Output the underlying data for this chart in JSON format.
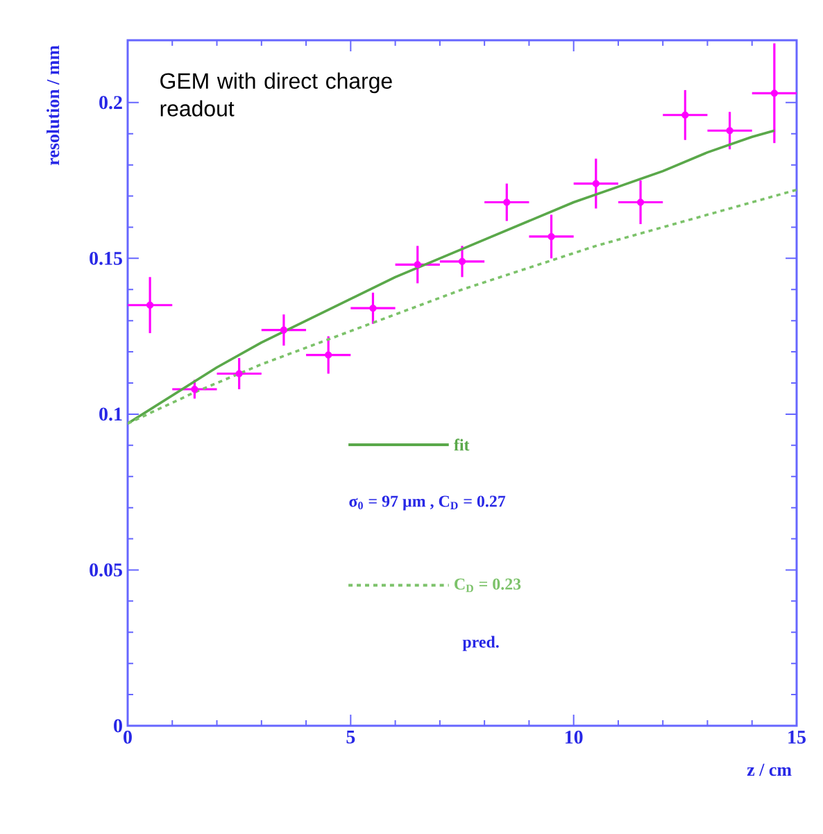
{
  "chart_data": {
    "type": "scatter",
    "xlabel": "z / cm",
    "ylabel": "resolution / mm",
    "xlim": [
      0,
      15
    ],
    "ylim": [
      0,
      0.22
    ],
    "xticks": [
      0,
      5,
      10,
      15
    ],
    "yticks": [
      0,
      0.05,
      0.1,
      0.15,
      0.2
    ],
    "legend": "bottom right",
    "annotations": [
      "GEM with direct charge readout",
      "σ$_{0}$ = 97 µm , C$_{D}$ = 0.27",
      "pred."
    ],
    "series": [
      {
        "color": "#ff00ff",
        "x": [
          0.5,
          1.5,
          2.5,
          3.5,
          4.5,
          5.5,
          6.5,
          7.5,
          8.5,
          9.5,
          10.5,
          11.5,
          12.5,
          13.5,
          14.5
        ],
        "values": [
          0.135,
          0.108,
          0.113,
          0.127,
          0.119,
          0.134,
          0.148,
          0.149,
          0.168,
          0.157,
          0.174,
          0.168,
          0.196,
          0.191,
          0.203
        ],
        "errors": [
          0.009,
          0.003,
          0.005,
          0.005,
          0.006,
          0.005,
          0.006,
          0.005,
          0.006,
          0.007,
          0.008,
          0.007,
          0.008,
          0.006,
          0.016
        ],
        "xerrors": [
          0.5,
          0.5,
          0.5,
          0.5,
          0.5,
          0.5,
          0.5,
          0.5,
          0.5,
          0.5,
          0.5,
          0.5,
          0.5,
          0.5,
          0.5
        ]
      },
      {
        "type": "line",
        "name": "fit",
        "color": "#5aa84a",
        "line_style": "solid",
        "x": [
          0,
          1,
          2,
          3,
          4,
          5,
          6,
          7,
          8,
          9,
          10,
          11,
          12,
          13,
          14,
          14.5
        ],
        "values": [
          0.097,
          0.106,
          0.115,
          0.123,
          0.13,
          0.137,
          0.144,
          0.15,
          0.156,
          0.162,
          0.168,
          0.173,
          0.178,
          0.184,
          0.189,
          0.191
        ]
      },
      {
        "type": "line",
        "name": "C$_{D}$ = 0.23",
        "color": "#7cc26a",
        "line_style": "dashed",
        "x": [
          0,
          1.5,
          3,
          4.5,
          6,
          7.5,
          9,
          10.5,
          12,
          13.5,
          15
        ],
        "values": [
          0.097,
          0.107,
          0.116,
          0.124,
          0.132,
          0.14,
          0.147,
          0.154,
          0.16,
          0.166,
          0.172
        ]
      }
    ]
  }
}
